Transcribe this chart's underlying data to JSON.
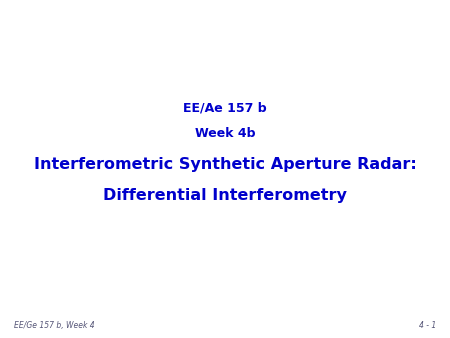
{
  "background_color": "#ffffff",
  "title_line1": "EE/Ae 157 b",
  "title_line2": "Week 4b",
  "title_line3": "Interferometric Synthetic Aperture Radar:",
  "title_line4": "Differential Interferometry",
  "title_color": "#0000cc",
  "title_fontsize_small": 9,
  "title_fontsize_large": 11.5,
  "footer_left": "EE/Ge 157 b, Week 4",
  "footer_right": "4 - 1",
  "footer_color": "#555577",
  "footer_fontsize": 5.5,
  "footer_style": "italic"
}
